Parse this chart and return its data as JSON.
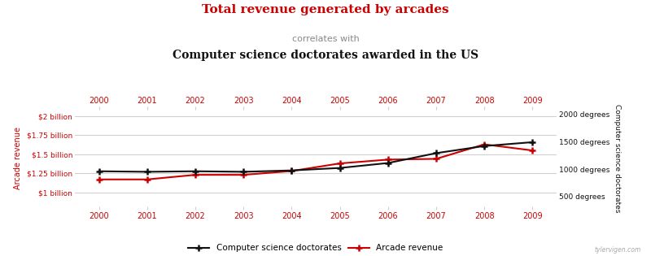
{
  "years": [
    2000,
    2001,
    2002,
    2003,
    2004,
    2005,
    2006,
    2007,
    2008,
    2009
  ],
  "arcade_revenue_b": [
    1.17,
    1.17,
    1.23,
    1.23,
    1.28,
    1.38,
    1.43,
    1.44,
    1.63,
    1.55
  ],
  "cs_doctorates": [
    960,
    950,
    960,
    950,
    975,
    1020,
    1110,
    1290,
    1420,
    1490
  ],
  "title_red": "Total revenue generated by arcades",
  "title_correlates": "correlates with",
  "title_black": "Computer science doctorates awarded in the US",
  "ylabel_left": "Arcade revenue",
  "ylabel_right": "Computer science doctorates",
  "legend_cs": "Computer science doctorates",
  "legend_arcade": "Arcade revenue",
  "watermark": "tylervigen.com",
  "color_red": "#cc0000",
  "color_black": "#111111",
  "color_gray": "#888888",
  "background": "#ffffff",
  "grid_color": "#d0d0d0",
  "yticks_arcade": [
    1.0,
    1.25,
    1.5,
    1.75,
    2.0
  ],
  "ytick_labels_arcade": [
    "$1 billion",
    "$1.25 billion",
    "$1.5 billion",
    "$1.75 billion",
    "$2 billion"
  ],
  "yticks_cs": [
    500,
    1000,
    1500,
    2000
  ],
  "ytick_labels_cs": [
    "500 degrees",
    "1000 degrees",
    "1500 degrees",
    "2000 degrees"
  ],
  "ylim_arcade": [
    0.82,
    2.08
  ],
  "ylim_cs": [
    325,
    2075
  ]
}
